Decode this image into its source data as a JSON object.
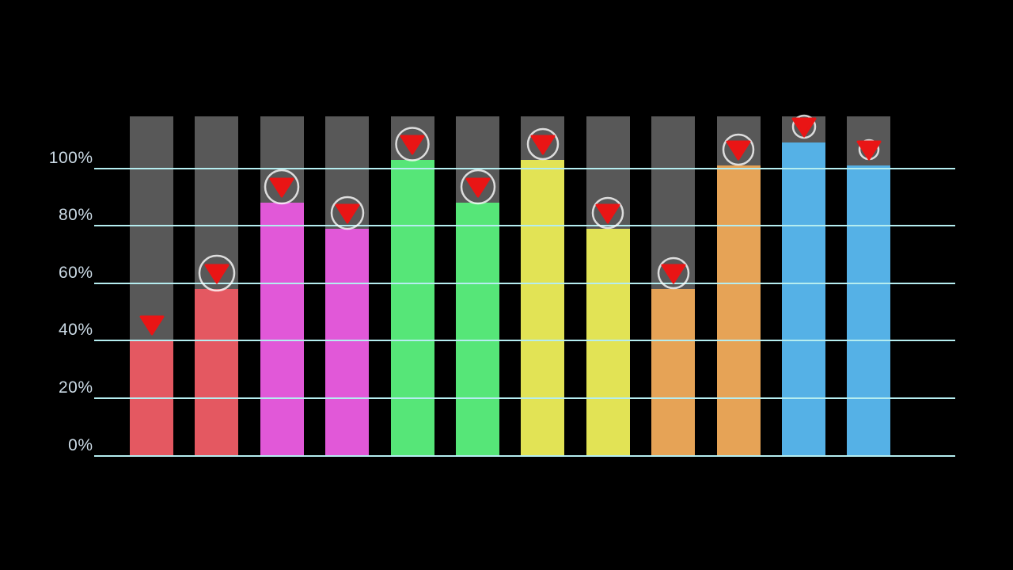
{
  "stage": {
    "background_color": "#000000"
  },
  "chart_data": {
    "type": "bar",
    "title": "",
    "xlabel": "",
    "ylabel": "",
    "ylim": [
      0,
      118
    ],
    "grid": true,
    "legend": false,
    "y_ticks": [
      {
        "value": 0,
        "label": "0%"
      },
      {
        "value": 20,
        "label": "20%"
      },
      {
        "value": 40,
        "label": "40%"
      },
      {
        "value": 60,
        "label": "60%"
      },
      {
        "value": 80,
        "label": "80%"
      },
      {
        "value": 100,
        "label": "100%"
      }
    ],
    "grid_color": "#b5edf0",
    "axis_text_color": "#cbdae5",
    "track_color": "#585858",
    "track_value": 118,
    "marker_triangle_color": "#e91515",
    "marker_ring_color": "rgba(255,255,255,0.8)",
    "bars": [
      {
        "value": 40,
        "color": "#e45861",
        "marker_triangle": true,
        "marker_ring": false,
        "ring_radius": 0
      },
      {
        "value": 58,
        "color": "#e45861",
        "marker_triangle": true,
        "marker_ring": true,
        "ring_radius": 22
      },
      {
        "value": 88,
        "color": "#e158d8",
        "marker_triangle": true,
        "marker_ring": true,
        "ring_radius": 21
      },
      {
        "value": 79,
        "color": "#e158d8",
        "marker_triangle": true,
        "marker_ring": true,
        "ring_radius": 20
      },
      {
        "value": 103,
        "color": "#56e678",
        "marker_triangle": true,
        "marker_ring": true,
        "ring_radius": 20.5
      },
      {
        "value": 88,
        "color": "#56e678",
        "marker_triangle": true,
        "marker_ring": true,
        "ring_radius": 21
      },
      {
        "value": 103,
        "color": "#e2e355",
        "marker_triangle": true,
        "marker_ring": true,
        "ring_radius": 19
      },
      {
        "value": 79,
        "color": "#e2e355",
        "marker_triangle": true,
        "marker_ring": true,
        "ring_radius": 19
      },
      {
        "value": 58,
        "color": "#e6a356",
        "marker_triangle": true,
        "marker_ring": true,
        "ring_radius": 19
      },
      {
        "value": 101,
        "color": "#e6a356",
        "marker_triangle": true,
        "marker_ring": true,
        "ring_radius": 19
      },
      {
        "value": 109,
        "color": "#55b1e6",
        "marker_triangle": true,
        "marker_ring": true,
        "ring_radius": 14
      },
      {
        "value": 101,
        "color": "#55b1e6",
        "marker_triangle": true,
        "marker_ring": true,
        "ring_radius": 12
      }
    ]
  }
}
